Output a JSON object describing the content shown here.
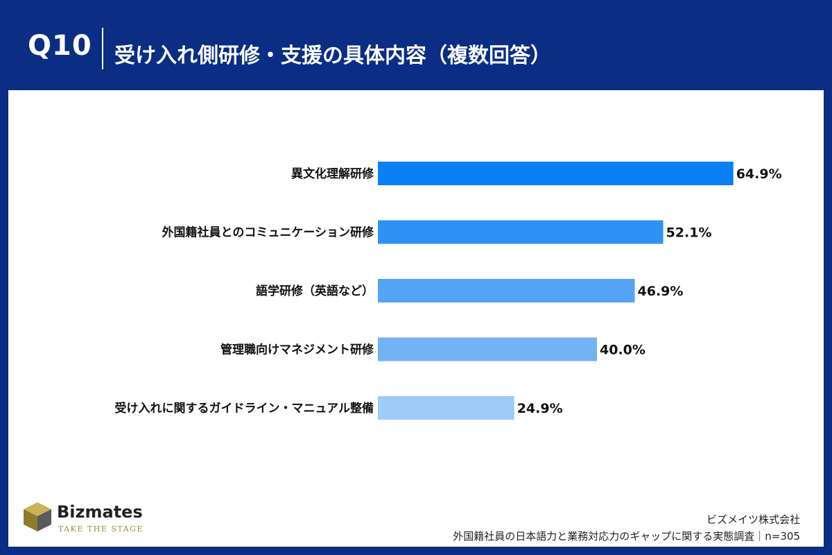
{
  "header": {
    "question_no": "Q10",
    "title": "受け入れ側研修・支援の具体内容（複数回答）"
  },
  "brand": {
    "name": "Bizmates",
    "tagline": "TAKE THE STAGE"
  },
  "footer": {
    "company": "ビズメイツ株式会社",
    "survey": "外国籍社員の日本語力と業務対応力のギャップに関する実態調査｜n=305"
  },
  "colors": {
    "header_bg": "#0b2d83",
    "bars": [
      "#0a80f5",
      "#2f91f4",
      "#55a3f4",
      "#72b2f5",
      "#9ecbf8"
    ]
  },
  "chart_data": {
    "type": "bar",
    "orientation": "horizontal",
    "categories": [
      "異文化理解研修",
      "外国籍社員とのコミュニケーション研修",
      "語学研修（英語など）",
      "管理職向けマネジメント研修",
      "受け入れに関するガイドライン・マニュアル整備"
    ],
    "values": [
      64.9,
      52.1,
      46.9,
      40.0,
      24.9
    ],
    "value_labels": [
      "64.9%",
      "52.1%",
      "46.9%",
      "40.0%",
      "24.9%"
    ],
    "unit": "%",
    "xlim": [
      0,
      100
    ],
    "grid": false,
    "legend": "none"
  }
}
